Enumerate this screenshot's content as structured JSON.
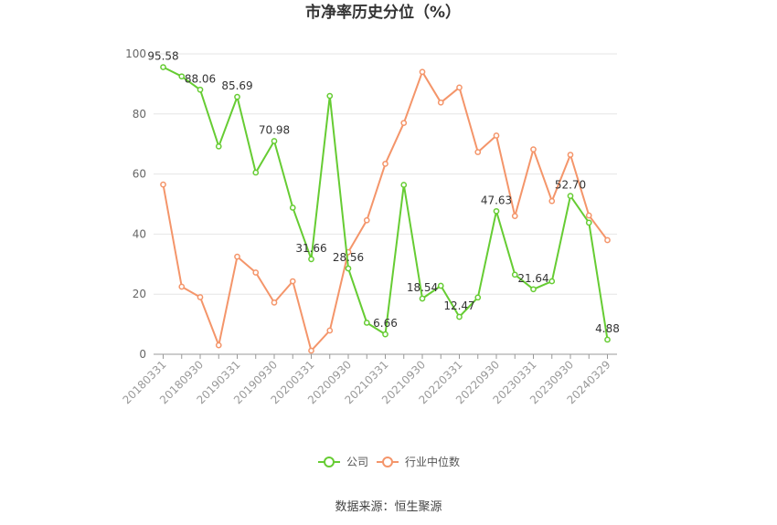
{
  "title": "市净率历史分位（%）",
  "source": "数据来源：恒生聚源",
  "colors": {
    "company": "#66cc33",
    "industry": "#f4956a",
    "grid": "#e6e6e6",
    "axis": "#999999"
  },
  "chart_data": {
    "type": "line",
    "title": "市净率历史分位（%）",
    "xlabel": "",
    "ylabel": "",
    "ylim": [
      0,
      100
    ],
    "yticks": [
      0,
      20,
      40,
      60,
      80,
      100
    ],
    "grid": true,
    "legend_position": "bottom",
    "x": [
      "20180331",
      "20180630",
      "20180930",
      "20181231",
      "20190331",
      "20190630",
      "20190930",
      "20191231",
      "20200331",
      "20200630",
      "20200930",
      "20201231",
      "20210331",
      "20210630",
      "20210930",
      "20211231",
      "20220331",
      "20220630",
      "20220930",
      "20221231",
      "20230331",
      "20230630",
      "20230930",
      "20231231",
      "20240329"
    ],
    "x_tick_labels": [
      "20180331",
      "20180930",
      "20190331",
      "20190930",
      "20200331",
      "20200930",
      "20210331",
      "20210930",
      "20220331",
      "20220930",
      "20230331",
      "20230930",
      "20240329"
    ],
    "series": [
      {
        "name": "公司",
        "color": "#66cc33",
        "values": [
          95.58,
          92.5,
          88.06,
          69.2,
          85.69,
          60.5,
          70.98,
          48.8,
          31.66,
          86.0,
          28.56,
          10.5,
          6.66,
          56.4,
          18.54,
          22.8,
          12.47,
          18.9,
          47.63,
          26.5,
          21.64,
          24.3,
          52.7,
          43.8,
          4.88
        ],
        "data_labels": [
          {
            "index": 0,
            "text": "95.58"
          },
          {
            "index": 2,
            "text": "88.06"
          },
          {
            "index": 4,
            "text": "85.69"
          },
          {
            "index": 6,
            "text": "70.98"
          },
          {
            "index": 8,
            "text": "31.66"
          },
          {
            "index": 10,
            "text": "28.56"
          },
          {
            "index": 12,
            "text": "6.66"
          },
          {
            "index": 14,
            "text": "18.54"
          },
          {
            "index": 16,
            "text": "12.47"
          },
          {
            "index": 18,
            "text": "47.63"
          },
          {
            "index": 20,
            "text": "21.64"
          },
          {
            "index": 22,
            "text": "52.70"
          },
          {
            "index": 24,
            "text": "4.88"
          }
        ]
      },
      {
        "name": "行业中位数",
        "color": "#f4956a",
        "values": [
          56.5,
          22.5,
          19.0,
          3.0,
          32.5,
          27.2,
          17.2,
          24.3,
          1.2,
          7.9,
          34.0,
          44.6,
          63.4,
          77.0,
          94.0,
          83.8,
          88.8,
          67.3,
          72.8,
          46.0,
          68.2,
          51.0,
          66.4,
          46.2,
          38.0
        ]
      }
    ]
  }
}
